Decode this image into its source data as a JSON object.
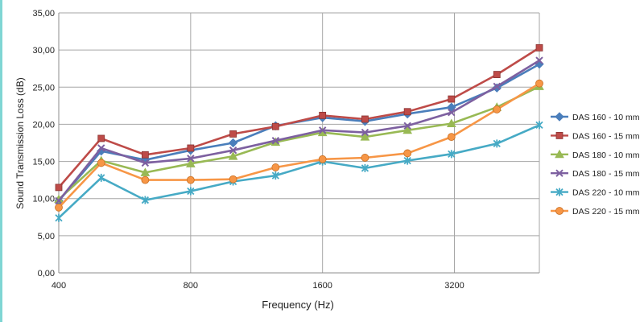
{
  "colors": {
    "frame_accent": "#7fd6d4",
    "gridline": "#a6a6a6",
    "axis": "#8c8c8c"
  },
  "chart_data": {
    "type": "line",
    "xlabel": "Frequency (Hz)",
    "ylabel": "Sound Transmission Loss (dB)",
    "x_scale": "log",
    "grid": true,
    "legend_position": "right",
    "ylim": [
      0,
      35
    ],
    "yticks": [
      "0,00",
      "5,00",
      "10,00",
      "15,00",
      "20,00",
      "25,00",
      "30,00",
      "35,00"
    ],
    "xticks": [
      {
        "value": 400,
        "label": "400"
      },
      {
        "value": 800,
        "label": "800"
      },
      {
        "value": 1600,
        "label": "1600"
      },
      {
        "value": 3200,
        "label": "3200"
      }
    ],
    "x": [
      400,
      500,
      630,
      800,
      1000,
      1250,
      1600,
      2000,
      2500,
      3150,
      4000,
      5000
    ],
    "series": [
      {
        "name": "DAS 160 - 10 mm",
        "color": "#4a7ebb",
        "marker": "diamond",
        "values": [
          9.7,
          16.4,
          15.2,
          16.5,
          17.5,
          19.8,
          20.9,
          20.4,
          21.4,
          22.3,
          24.9,
          28.1
        ]
      },
      {
        "name": "DAS 160 - 15 mm",
        "color": "#be4b48",
        "marker": "square",
        "values": [
          11.5,
          18.1,
          15.9,
          16.8,
          18.7,
          19.7,
          21.2,
          20.7,
          21.7,
          23.4,
          26.7,
          30.3
        ]
      },
      {
        "name": "DAS 180 - 10 mm",
        "color": "#98b954",
        "marker": "triangle",
        "values": [
          9.9,
          15.1,
          13.5,
          14.7,
          15.7,
          17.6,
          18.9,
          18.3,
          19.2,
          20.1,
          22.3,
          25.1
        ]
      },
      {
        "name": "DAS 180 - 15 mm",
        "color": "#7d60a0",
        "marker": "x",
        "values": [
          9.7,
          16.8,
          14.8,
          15.4,
          16.5,
          17.8,
          19.2,
          18.9,
          19.8,
          21.6,
          25.1,
          28.6
        ]
      },
      {
        "name": "DAS 220 - 10 mm",
        "color": "#46aac5",
        "marker": "star",
        "values": [
          7.4,
          12.8,
          9.8,
          11.0,
          12.3,
          13.1,
          15.0,
          14.1,
          15.1,
          16.0,
          17.4,
          19.9
        ]
      },
      {
        "name": "DAS 220 - 15 mm",
        "color": "#f79646",
        "marker": "circle",
        "values": [
          8.8,
          14.8,
          12.5,
          12.5,
          12.6,
          14.2,
          15.3,
          15.5,
          16.1,
          18.3,
          22.0,
          25.5
        ]
      }
    ]
  }
}
